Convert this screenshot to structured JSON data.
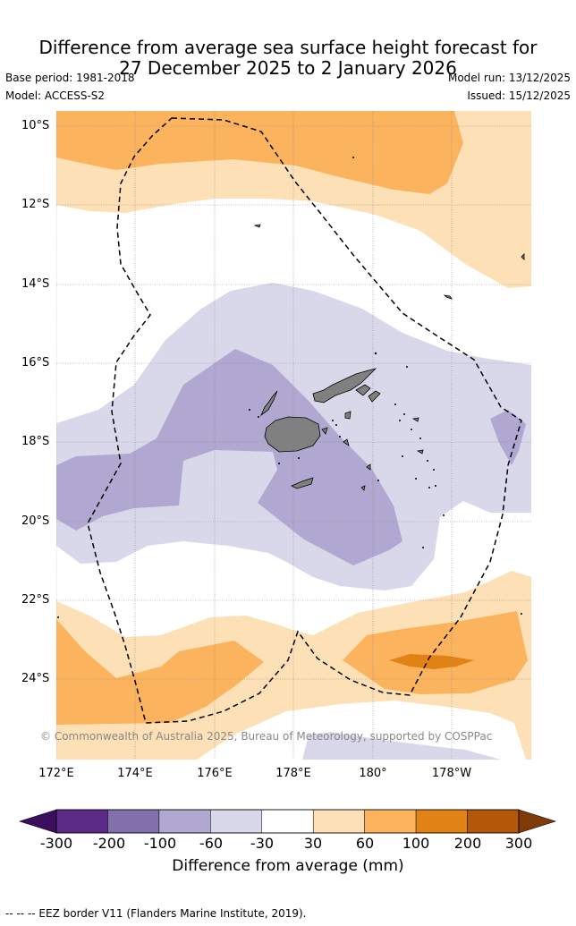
{
  "header": {
    "title_line1": "Difference from average sea surface height forecast for",
    "title_line2": "27 December 2025 to 2 January 2026",
    "base_period": "Base period: 1981-2018",
    "model": "Model: ACCESS-S2",
    "model_run": "Model run: 13/12/2025",
    "issued": "Issued: 15/12/2025"
  },
  "map": {
    "lat_labels": [
      "10°S",
      "12°S",
      "14°S",
      "16°S",
      "18°S",
      "20°S",
      "22°S",
      "24°S"
    ],
    "lon_labels": [
      "172°E",
      "174°E",
      "176°E",
      "178°E",
      "180°",
      "178°W"
    ],
    "copyright": "© Commonwealth of Australia 2025, Bureau of Meteorology, supported by COSPPac",
    "land_color": "#808080"
  },
  "colorbar": {
    "ticks": [
      "-300",
      "-200",
      "-100",
      "-60",
      "-30",
      "30",
      "60",
      "100",
      "200",
      "300"
    ],
    "colors": [
      "#5b2a86",
      "#8270ad",
      "#b0a8d1",
      "#d8d8ea",
      "#ffffff",
      "#fde0b6",
      "#fbb35e",
      "#e08314",
      "#b35806"
    ],
    "under_color": "#3b0f5e",
    "over_color": "#7f3b08",
    "label": "Difference from average (mm)"
  },
  "footer": {
    "legend": "-- -- -- EEZ border V11 (Flanders Marine Institute, 2019)."
  }
}
